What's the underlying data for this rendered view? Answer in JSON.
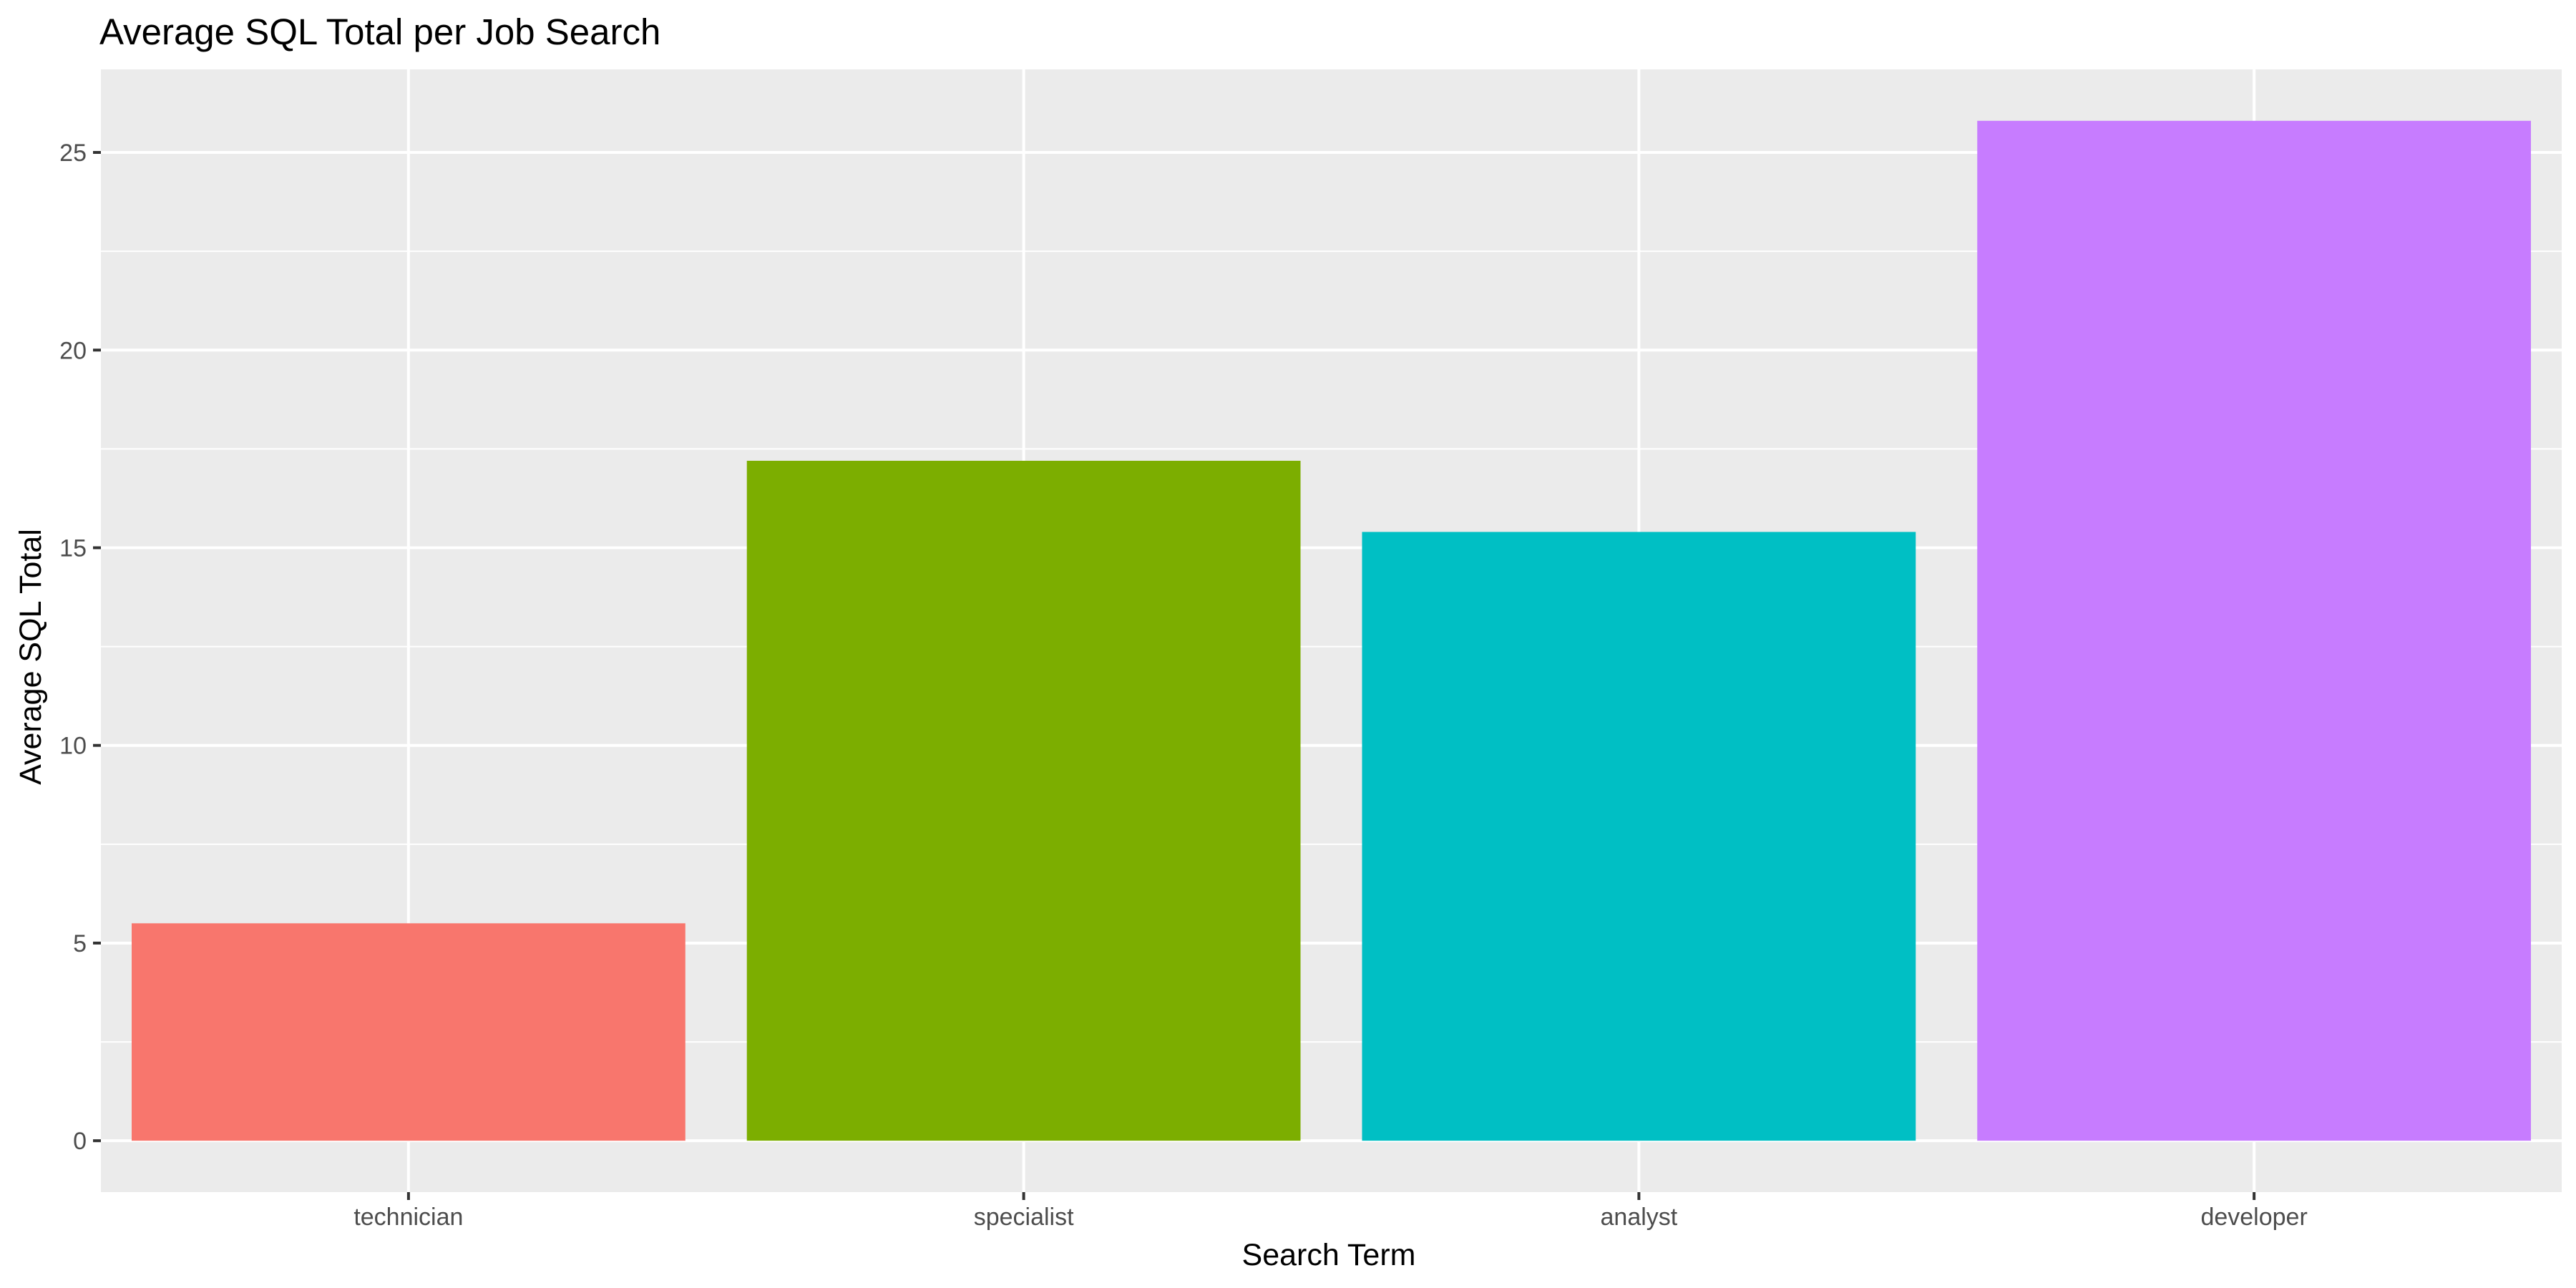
{
  "chart_data": {
    "type": "bar",
    "title": "Average SQL Total per Job Search",
    "xlabel": "Search Term",
    "ylabel": "Average SQL Total",
    "categories": [
      "technician",
      "specialist",
      "analyst",
      "developer"
    ],
    "values": [
      5.5,
      17.2,
      15.4,
      25.8
    ],
    "colors": [
      "#F8766D",
      "#7CAE00",
      "#00BFC4",
      "#C77CFF"
    ],
    "ylim": [
      -1.3,
      27.1
    ],
    "yticks": [
      0,
      5,
      10,
      15,
      20,
      25
    ],
    "ytick_labels": [
      "0",
      "5",
      "10",
      "15",
      "20",
      "25"
    ],
    "grid": true,
    "legend": "none",
    "panel_background": "#EBEBEB",
    "grid_color": "#FFFFFF"
  }
}
